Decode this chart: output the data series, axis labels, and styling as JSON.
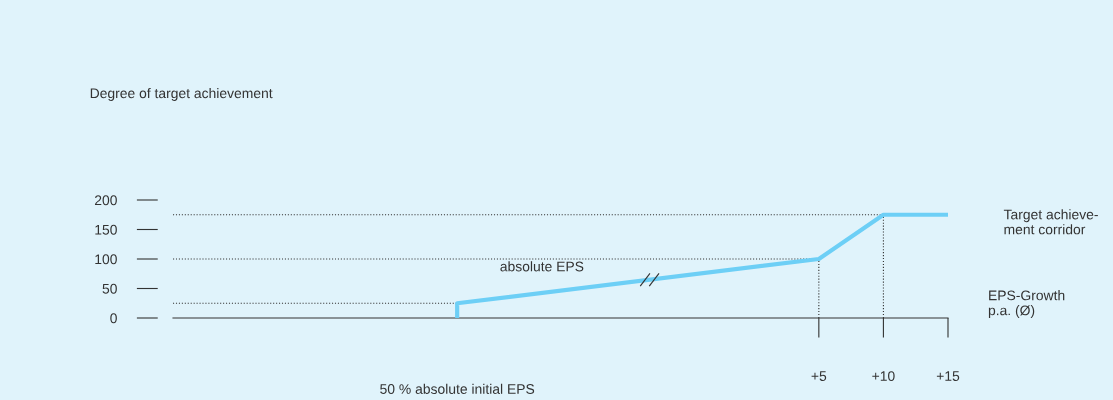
{
  "chart_data": {
    "type": "line",
    "xlabel": "EPS-Growth\np.a. (Ø)",
    "series": [
      {
        "color": "#6dcff6",
        "x": [
          -23,
          -23,
          5,
          10,
          15
        ],
        "values": [
          0,
          25,
          100,
          175,
          175
        ]
      }
    ],
    "xlim": [
      -45,
      15
    ],
    "xticks": [
      {
        "value": 5,
        "label": "+5"
      },
      {
        "value": 10,
        "label": "+10"
      },
      {
        "value": 15,
        "label": "+15"
      }
    ],
    "ylim": [
      0,
      200
    ],
    "yticks": [
      0,
      50,
      100,
      150,
      200
    ],
    "ref_lines": [
      {
        "axis": "y",
        "value": 25,
        "line_style": "dotted",
        "color": "#333333"
      },
      {
        "axis": "y",
        "value": 100,
        "line_style": "dotted",
        "color": "#333333"
      },
      {
        "axis": "y",
        "value": 175,
        "line_style": "dotted",
        "color": "#333333"
      },
      {
        "axis": "x",
        "value": 5,
        "line_style": "dotted",
        "color": "#333333"
      },
      {
        "axis": "x",
        "value": 10,
        "line_style": "dotted",
        "color": "#333333"
      }
    ],
    "annotations": [
      "Degree of target achievement",
      "absolute EPS",
      "Target achieve-\nment corridor",
      "50 % absolute initial EPS"
    ],
    "grid": false,
    "marker": "none",
    "line_style": "solid"
  }
}
